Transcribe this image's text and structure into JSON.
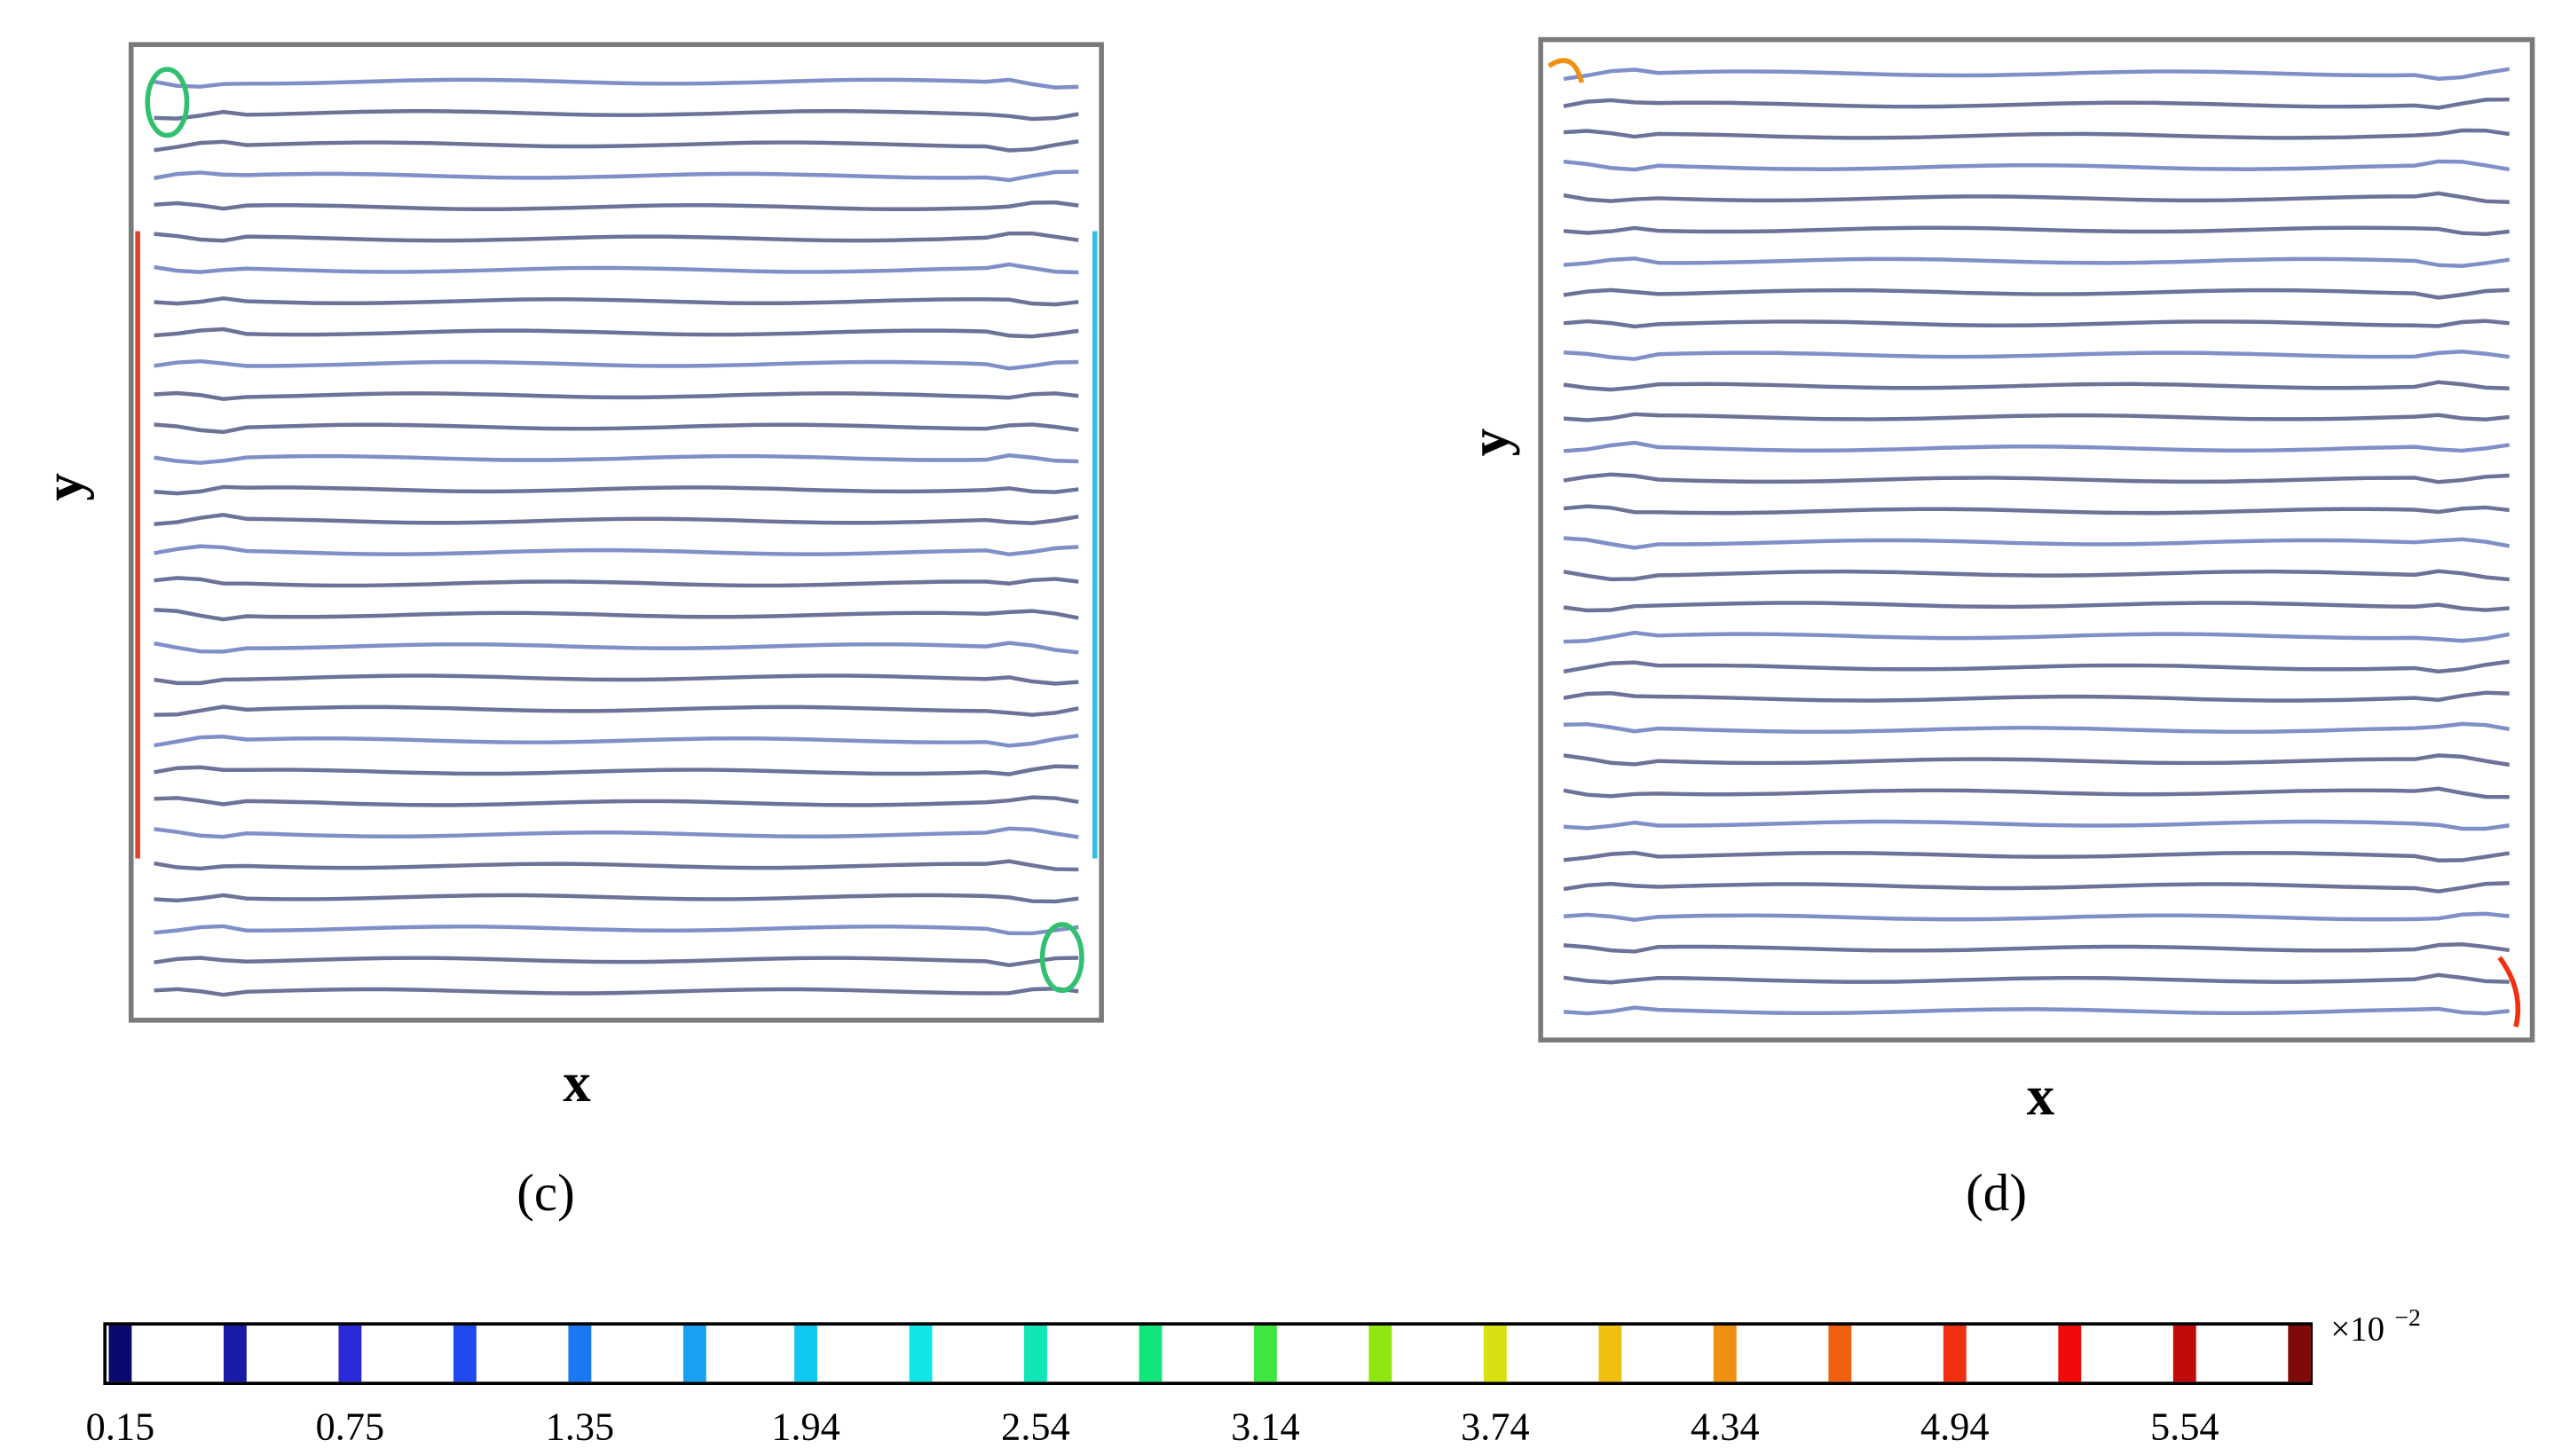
{
  "panels": [
    {
      "label": "(c)",
      "x_label": "x",
      "y_label": "y"
    },
    {
      "label": "(d)",
      "x_label": "x",
      "y_label": "y"
    }
  ],
  "chart_data": {
    "type": "colorbar",
    "clim": [
      0.11,
      5.87
    ],
    "ticks": [
      0.15,
      0.75,
      1.35,
      1.94,
      2.54,
      3.14,
      3.74,
      4.34,
      4.94,
      5.54
    ],
    "levels": [
      0.15,
      0.45,
      0.75,
      1.05,
      1.35,
      1.65,
      1.94,
      2.24,
      2.54,
      2.84,
      3.14,
      3.44,
      3.74,
      4.04,
      4.34,
      4.64,
      4.94,
      5.24,
      5.54,
      5.84
    ],
    "colors": [
      "#0a0a6e",
      "#1a1aa8",
      "#2a2ad8",
      "#1f4af0",
      "#1a78f0",
      "#1aa0f0",
      "#10c8f0",
      "#10e6e6",
      "#10e6b4",
      "#10e67a",
      "#40e640",
      "#90e610",
      "#d8e010",
      "#f0c010",
      "#f09010",
      "#f06010",
      "#f03010",
      "#f00a0a",
      "#c00a0a",
      "#800a0a"
    ],
    "multiplier": "×10",
    "exponent": "−2"
  }
}
